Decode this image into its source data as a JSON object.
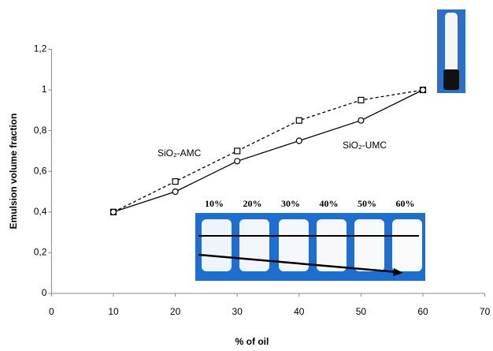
{
  "chart_data": {
    "type": "line",
    "x_label": "% of oil",
    "y_label": "Emulsion volume fraction",
    "x": [
      10,
      20,
      30,
      40,
      50,
      60
    ],
    "series": [
      {
        "name": "SiO₂-AMC",
        "color": "#000000",
        "dash": true,
        "marker": "square",
        "values": [
          0.4,
          0.55,
          0.7,
          0.85,
          0.95,
          1
        ]
      },
      {
        "name": "SiO₂-UMC",
        "color": "#000000",
        "dash": false,
        "marker": "circle",
        "values": [
          0.4,
          0.5,
          0.65,
          0.75,
          0.85,
          1
        ]
      }
    ],
    "xlim": [
      0,
      70
    ],
    "xticks": [
      0,
      10,
      20,
      30,
      40,
      50,
      60,
      70
    ],
    "ylim": [
      0,
      1.2
    ],
    "yticks": [
      0,
      {
        "value": 0.2,
        "label": "0,2"
      },
      {
        "value": 0.4,
        "label": "0,4"
      },
      {
        "value": 0.6,
        "label": "0,6"
      },
      {
        "value": 0.8,
        "label": "0,8"
      },
      1,
      {
        "value": 1.2,
        "label": "1,2"
      }
    ],
    "grid": false,
    "inset_labels": [
      "10%",
      "20%",
      "30%",
      "40%",
      "50%",
      "60%"
    ]
  }
}
